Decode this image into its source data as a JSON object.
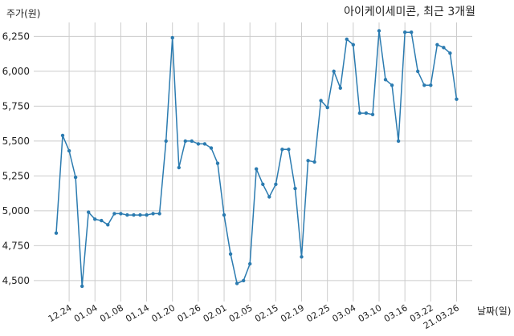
{
  "chart_data": {
    "type": "line",
    "title": "아이케이세미콘, 최근 3개월",
    "ylabel": "주가(원)",
    "xlabel": "날짜(일)",
    "ylim": [
      4350,
      6350
    ],
    "grid": true,
    "colors": {
      "line": "#2b7bb0"
    },
    "yticks": [
      {
        "value": 4500,
        "label": "4,500"
      },
      {
        "value": 4750,
        "label": "4,750"
      },
      {
        "value": 5000,
        "label": "5,000"
      },
      {
        "value": 5250,
        "label": "5,250"
      },
      {
        "value": 5500,
        "label": "5,500"
      },
      {
        "value": 5750,
        "label": "5,750"
      },
      {
        "value": 6000,
        "label": "6,000"
      },
      {
        "value": 6250,
        "label": "6,250"
      }
    ],
    "xticks": [
      {
        "index": 2,
        "label": "12.24"
      },
      {
        "index": 6,
        "label": "01.04"
      },
      {
        "index": 10,
        "label": "01.08"
      },
      {
        "index": 14,
        "label": "01.14"
      },
      {
        "index": 18,
        "label": "01.20"
      },
      {
        "index": 22,
        "label": "01.26"
      },
      {
        "index": 26,
        "label": "02.01"
      },
      {
        "index": 30,
        "label": "02.05"
      },
      {
        "index": 34,
        "label": "02.15"
      },
      {
        "index": 38,
        "label": "02.19"
      },
      {
        "index": 42,
        "label": "02.25"
      },
      {
        "index": 46,
        "label": "03.04"
      },
      {
        "index": 50,
        "label": "03.10"
      },
      {
        "index": 54,
        "label": "03.16"
      },
      {
        "index": 58,
        "label": "03.22"
      },
      {
        "index": 62,
        "label": "21.03.26"
      }
    ],
    "values": [
      4840,
      5540,
      5430,
      5240,
      4460,
      4990,
      4940,
      4930,
      4900,
      4980,
      4980,
      4970,
      4970,
      4970,
      4970,
      4980,
      4980,
      5500,
      6240,
      5310,
      5500,
      5500,
      5480,
      5480,
      5450,
      5340,
      4970,
      4690,
      4480,
      4500,
      4620,
      5300,
      5190,
      5100,
      5190,
      5440,
      5440,
      5160,
      4670,
      5360,
      5350,
      5790,
      5740,
      6000,
      5880,
      6230,
      6190,
      5700,
      5700,
      5690,
      6290,
      5940,
      5900,
      5500,
      6280,
      6280,
      6000,
      5900,
      5900,
      6190,
      6170,
      6130,
      5800
    ]
  }
}
